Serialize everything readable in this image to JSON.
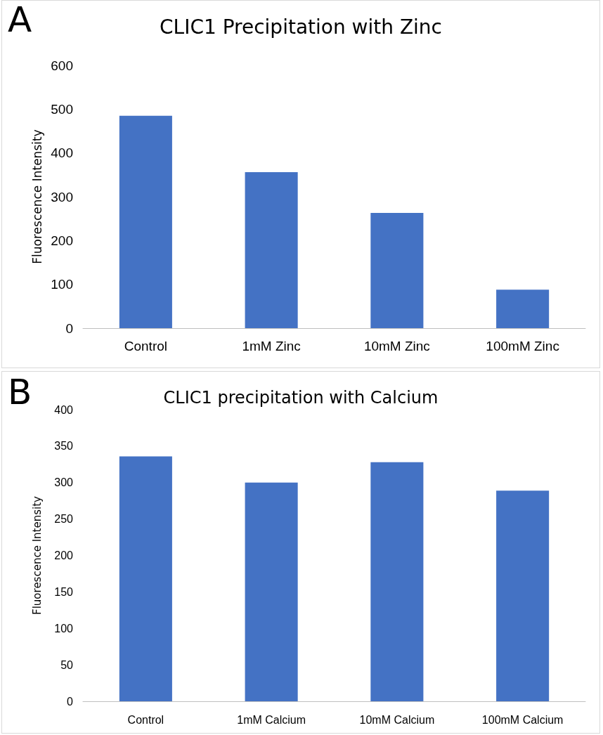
{
  "chart_data": [
    {
      "type": "bar",
      "title": "CLIC1 Precipitation with Zinc",
      "ylabel": "Fluorescence Intensity",
      "categories": [
        "Control",
        "1mM Zinc",
        "10mM Zinc",
        "100mM Zinc"
      ],
      "series": [
        {
          "color": "#4472c4",
          "values": [
            485,
            356,
            263,
            88
          ]
        }
      ],
      "ylim": [
        0,
        600
      ],
      "yticks": [
        0,
        100,
        200,
        300,
        400,
        500,
        600
      ],
      "grid": false,
      "annotations": [
        "A"
      ]
    },
    {
      "type": "bar",
      "title": "CLIC1 precipitation with Calcium",
      "ylabel": "Fluorescence Intensity",
      "categories": [
        "Control",
        "1mM Calcium",
        "10mM Calcium",
        "100mM Calcium"
      ],
      "series": [
        {
          "color": "#4472c4",
          "values": [
            336,
            300,
            328,
            289
          ]
        }
      ],
      "ylim": [
        0,
        400
      ],
      "yticks": [
        0,
        50,
        100,
        150,
        200,
        250,
        300,
        350,
        400
      ],
      "grid": false,
      "annotations": [
        "B"
      ]
    }
  ]
}
